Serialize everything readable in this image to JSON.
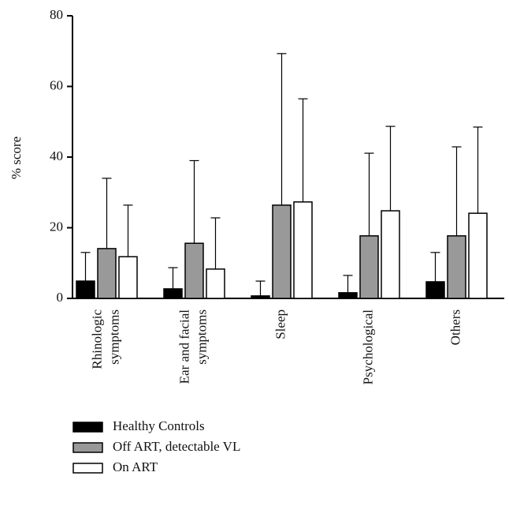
{
  "chart_data": {
    "type": "bar",
    "y_label": "% score",
    "categories": [
      [
        "Rhinologic",
        "symptoms"
      ],
      [
        "Ear and facial",
        "symptoms"
      ],
      [
        "Sleep"
      ],
      [
        "Psychological"
      ],
      [
        "Others"
      ]
    ],
    "series": [
      {
        "name": "Healthy Controls",
        "color": "#000000",
        "values": [
          4.9,
          2.7,
          0.7,
          1.6,
          4.7
        ],
        "errors": [
          8.1,
          6.0,
          4.2,
          4.9,
          8.3
        ]
      },
      {
        "name": "Off ART, detectable VL",
        "color": "#999999",
        "values": [
          14.1,
          15.6,
          26.4,
          17.7,
          17.7
        ],
        "errors": [
          19.9,
          23.4,
          42.9,
          23.4,
          25.2
        ]
      },
      {
        "name": "On ART",
        "color": "#ffffff",
        "values": [
          11.8,
          8.3,
          27.3,
          24.8,
          24.1
        ],
        "errors": [
          14.6,
          14.5,
          29.2,
          23.9,
          24.4
        ]
      }
    ],
    "ylim": [
      0,
      80
    ],
    "yticks": [
      0,
      20,
      40,
      60,
      80
    ]
  }
}
